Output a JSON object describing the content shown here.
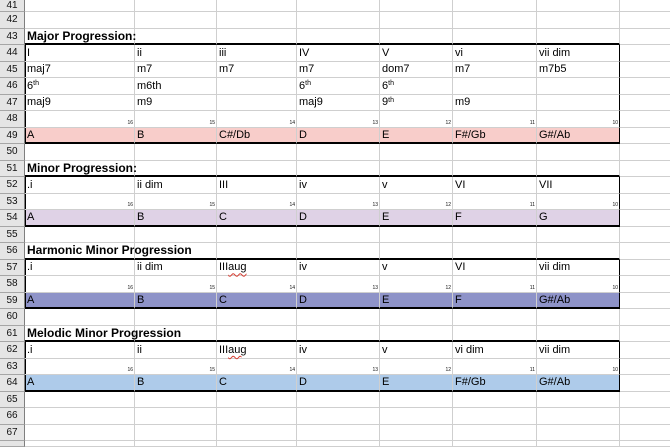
{
  "colors": {
    "pink": "#F8CDCA",
    "lavender": "#DFD2E6",
    "slate": "#8E93C8",
    "blue": "#AECBEA",
    "grid_line": "#CFCFCF",
    "header_bg": "#E5E5E5",
    "thick_border": "#000000",
    "page_break": "#666666",
    "spellcheck_red": "#D83A2E"
  },
  "rows": [
    {
      "n": "41",
      "type": "blank",
      "cells": [
        "",
        "",
        "",
        "",
        "",
        "",
        ""
      ]
    },
    {
      "n": "42",
      "type": "blank",
      "cells": [
        "",
        "",
        "",
        "",
        "",
        "",
        ""
      ]
    },
    {
      "n": "43",
      "type": "title",
      "title": "Major Progression:"
    },
    {
      "n": "44",
      "type": "data",
      "sec": true,
      "cells": [
        "I",
        "ii",
        "iii",
        "IV",
        "V",
        "vi",
        "vii dim"
      ]
    },
    {
      "n": "45",
      "type": "data",
      "sec": true,
      "cells": [
        "maj7",
        "m7",
        "m7",
        "m7",
        "dom7",
        "m7",
        "m7b5"
      ]
    },
    {
      "n": "46",
      "type": "data",
      "sec": true,
      "cells": [
        {
          "t": "6",
          "sup": "th"
        },
        "m6th",
        "",
        {
          "t": "6",
          "sup": "th"
        },
        {
          "t": "6",
          "sup": "th"
        },
        "",
        ""
      ]
    },
    {
      "n": "47",
      "type": "data",
      "sec": true,
      "cells": [
        "maj9",
        "m9",
        "",
        "maj9",
        {
          "t": "9",
          "sup": "th"
        },
        "m9",
        ""
      ]
    },
    {
      "n": "48",
      "type": "tiny",
      "sec": true,
      "cells": [
        "16",
        "15",
        "14",
        "13",
        "12",
        "11",
        "10"
      ]
    },
    {
      "n": "49",
      "type": "notes",
      "sec": true,
      "fill": "pink",
      "cells": [
        "A",
        "B",
        "C#/Db",
        "D",
        "E",
        "F#/Gb",
        "G#/Ab"
      ]
    },
    {
      "n": "50",
      "type": "blank",
      "cells": [
        "",
        "",
        "",
        "",
        "",
        "",
        ""
      ]
    },
    {
      "n": "51",
      "type": "title",
      "title": "Minor Progression:"
    },
    {
      "n": "52",
      "type": "data",
      "sec": true,
      "cells": [
        ".i",
        "ii dim",
        "III",
        "iv",
        "v",
        "VI",
        "VII"
      ]
    },
    {
      "n": "53",
      "type": "tiny",
      "sec": true,
      "cells": [
        "16",
        "15",
        "14",
        "13",
        "12",
        "11",
        "10"
      ]
    },
    {
      "n": "54",
      "type": "notes",
      "sec": true,
      "fill": "lavender",
      "cells": [
        "A",
        "B",
        "C",
        "D",
        "E",
        "F",
        "G"
      ]
    },
    {
      "n": "55",
      "type": "blank",
      "cells": [
        "",
        "",
        "",
        "",
        "",
        "",
        ""
      ]
    },
    {
      "n": "56",
      "type": "title",
      "title": "Harmonic Minor Progression"
    },
    {
      "n": "57",
      "type": "data",
      "sec": true,
      "cells": [
        ".i",
        "ii dim",
        {
          "t": "III ",
          "wavy": "aug"
        },
        "iv",
        "v",
        "VI",
        "vii dim"
      ]
    },
    {
      "n": "58",
      "type": "tiny",
      "sec": true,
      "cells": [
        "16",
        "15",
        "14",
        "13",
        "12",
        "11",
        "10"
      ]
    },
    {
      "n": "59",
      "type": "notes",
      "sec": true,
      "fill": "slate",
      "cells": [
        "A",
        "B",
        "C",
        "D",
        "E",
        "F",
        "G#/Ab"
      ]
    },
    {
      "n": "60",
      "type": "blank",
      "cells": [
        "",
        "",
        "",
        "",
        "",
        "",
        ""
      ]
    },
    {
      "n": "61",
      "type": "title",
      "title": "Melodic Minor Progression"
    },
    {
      "n": "62",
      "type": "data",
      "sec": true,
      "cells": [
        ".i",
        "ii",
        {
          "t": "III ",
          "wavy": "aug"
        },
        "iv",
        "v",
        "vi dim",
        "vii dim"
      ]
    },
    {
      "n": "63",
      "type": "tiny",
      "sec": true,
      "cells": [
        "16",
        "15",
        "14",
        "13",
        "12",
        "11",
        "10"
      ]
    },
    {
      "n": "64",
      "type": "notes",
      "sec": true,
      "fill": "blue",
      "cells": [
        "A",
        "B",
        "C",
        "D",
        "E",
        "F#/Gb",
        "G#/Ab"
      ]
    },
    {
      "n": "65",
      "type": "blank",
      "cells": [
        "",
        "",
        "",
        "",
        "",
        "",
        ""
      ]
    },
    {
      "n": "66",
      "type": "blank",
      "cells": [
        "",
        "",
        "",
        "",
        "",
        "",
        ""
      ]
    },
    {
      "n": "67",
      "type": "blank",
      "cells": [
        "",
        "",
        "",
        "",
        "",
        "",
        ""
      ]
    }
  ]
}
